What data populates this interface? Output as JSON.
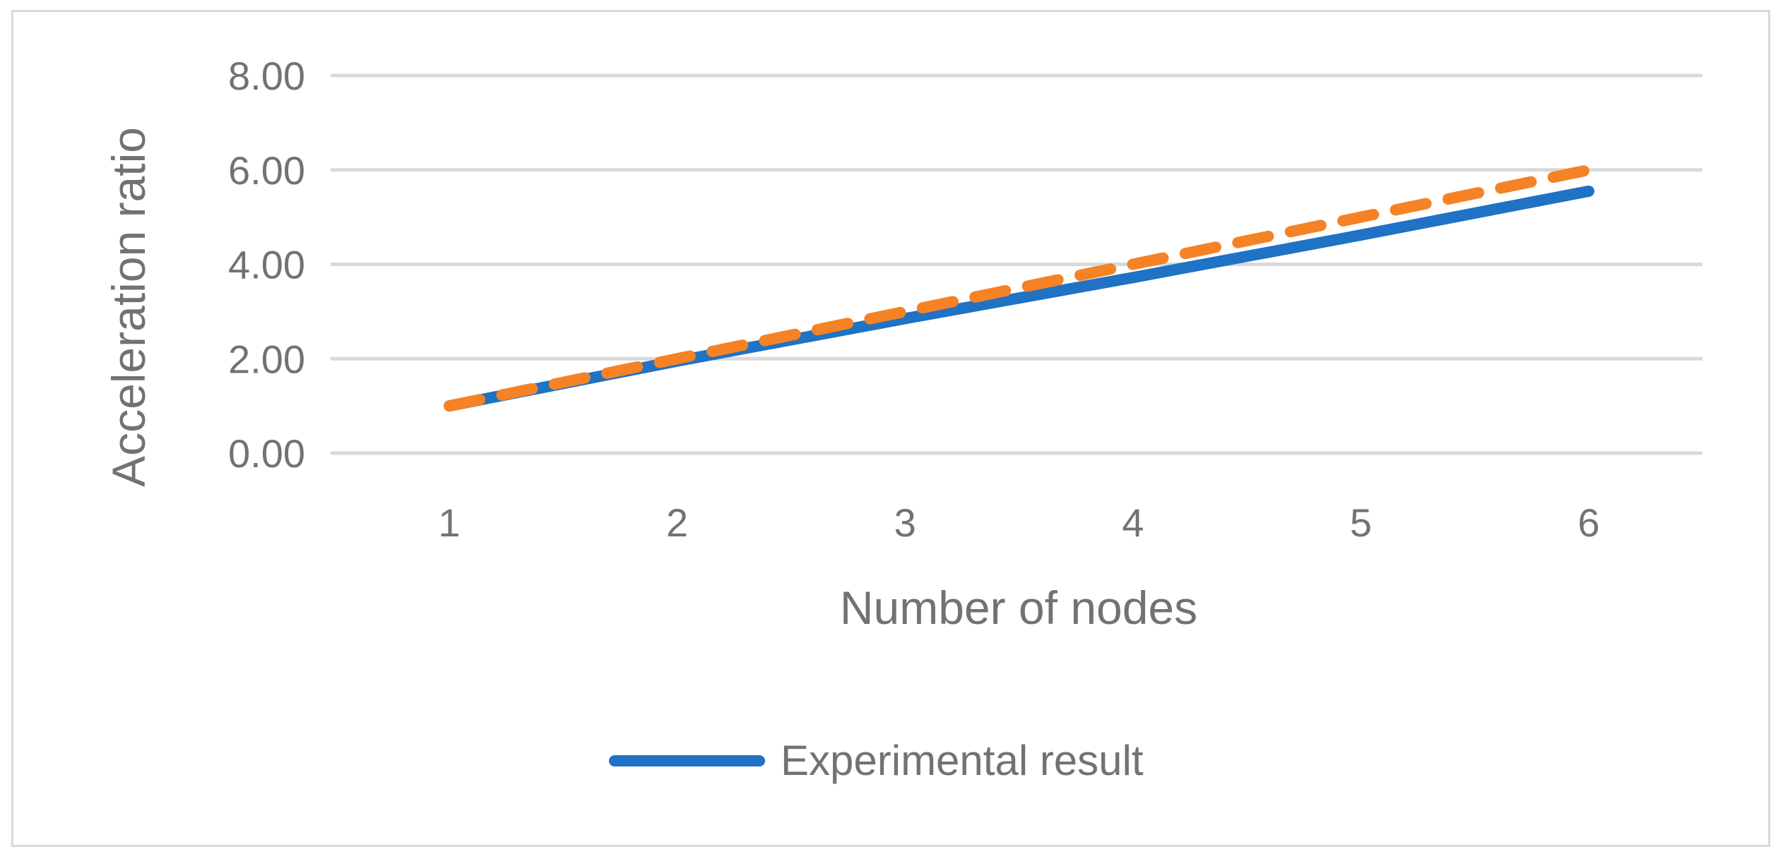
{
  "chart_data": {
    "type": "line",
    "categories": [
      "1",
      "2",
      "3",
      "4",
      "5",
      "6"
    ],
    "series": [
      {
        "name": "Experimental result",
        "values": [
          1.0,
          1.95,
          2.85,
          3.72,
          4.62,
          5.55
        ],
        "color": "#1f72c4",
        "style": "solid"
      },
      {
        "values": [
          1.0,
          2.0,
          3.0,
          4.0,
          5.0,
          6.0
        ],
        "color": "#f58225",
        "style": "dashed"
      }
    ],
    "xlabel": "Number of nodes",
    "ylabel": "Acceleration ratio",
    "ylim": [
      0,
      8
    ],
    "yticks": [
      "0.00",
      "2.00",
      "4.00",
      "6.00",
      "8.00"
    ],
    "grid": true,
    "legend_position": "bottom"
  }
}
